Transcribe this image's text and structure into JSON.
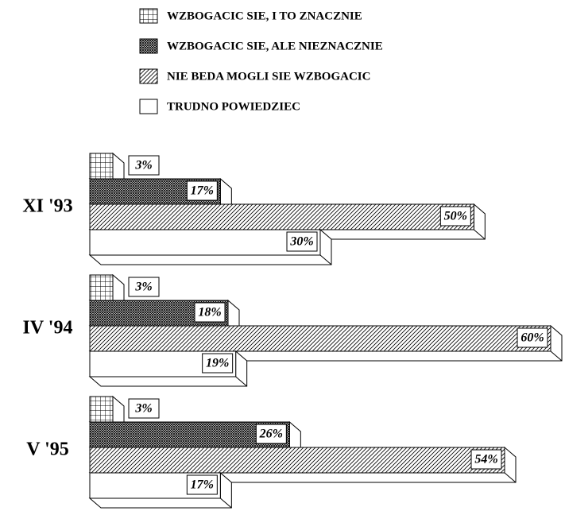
{
  "chart_data": {
    "type": "bar",
    "categories": [
      "XI '93",
      "IV '94",
      "V '95"
    ],
    "series": [
      {
        "name": "WZBOGACIC SIE, I TO ZNACZNIE",
        "color": "#000000",
        "values": [
          3,
          3,
          3
        ],
        "value_labels": [
          "3%",
          "3%",
          "3%"
        ]
      },
      {
        "name": "WZBOGACIC SIE, ALE NIEZNACZNIE",
        "color": "#000000",
        "values": [
          17,
          18,
          26
        ],
        "value_labels": [
          "17%",
          "18%",
          "26%"
        ]
      },
      {
        "name": "NIE BEDA MOGLI SIE WZBOGACIC",
        "color": "#000000",
        "values": [
          50,
          60,
          54
        ],
        "value_labels": [
          "50%",
          "60%",
          "54%"
        ]
      },
      {
        "name": "TRUDNO POWIEDZIEC",
        "color": "#000000",
        "values": [
          30,
          19,
          17
        ],
        "value_labels": [
          "30%",
          "19%",
          "17%"
        ]
      }
    ]
  }
}
